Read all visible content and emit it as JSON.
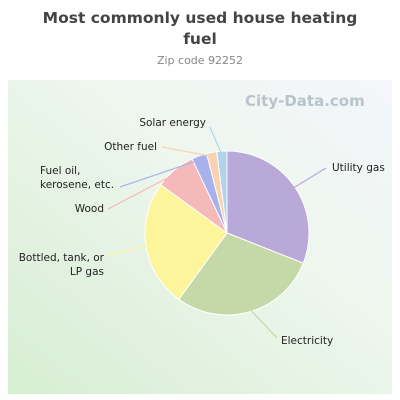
{
  "chart_data": {
    "type": "pie",
    "title": "Most commonly used house heating fuel",
    "subtitle": "Zip code 92252",
    "watermark": "City-Data.com",
    "categories": [
      "Utility gas",
      "Electricity",
      "Bottled, tank, or LP gas",
      "Wood",
      "Fuel oil, kerosene, etc.",
      "Other fuel",
      "Solar energy"
    ],
    "values": [
      31,
      29,
      25,
      8,
      3,
      2,
      2
    ],
    "colors": [
      "#b9a9d9",
      "#c5d9a8",
      "#fdf59c",
      "#f6b9b9",
      "#a9b1ec",
      "#f9d3b1",
      "#b2d3ec"
    ]
  }
}
